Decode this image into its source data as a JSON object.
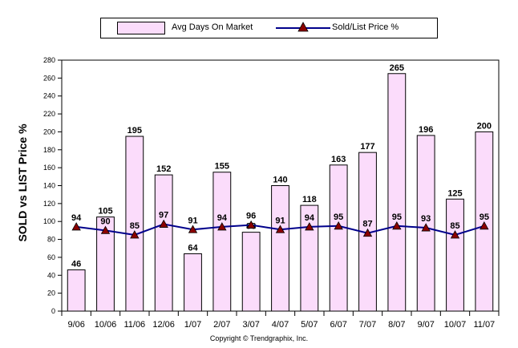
{
  "legend": {
    "bar_label": "Avg Days On Market",
    "line_label": "Sold/List Price %"
  },
  "copyright": "Copyright © Trendgraphix, Inc.",
  "chart_data": {
    "type": "bar",
    "categories": [
      "9/06",
      "10/06",
      "11/06",
      "12/06",
      "1/07",
      "2/07",
      "3/07",
      "4/07",
      "5/07",
      "6/07",
      "7/07",
      "8/07",
      "9/07",
      "10/07",
      "11/07"
    ],
    "series": [
      {
        "name": "Avg Days On Market",
        "type": "bar",
        "color": "#fbdcfb",
        "values": [
          46,
          105,
          195,
          152,
          64,
          155,
          88,
          140,
          118,
          163,
          177,
          265,
          196,
          125,
          200
        ]
      },
      {
        "name": "Sold/List Price %",
        "type": "line",
        "color": "#00008b",
        "marker_color": "#8b0000",
        "values": [
          94,
          90,
          85,
          97,
          91,
          94,
          96,
          91,
          94,
          95,
          87,
          95,
          93,
          85,
          95
        ]
      }
    ],
    "ylabel": "SOLD vs LIST Price %",
    "ylim": [
      0,
      280
    ],
    "yticks": [
      0,
      20,
      40,
      60,
      80,
      100,
      120,
      140,
      160,
      180,
      200,
      220,
      240,
      260,
      280
    ],
    "grid": false,
    "legend_position": "top"
  }
}
